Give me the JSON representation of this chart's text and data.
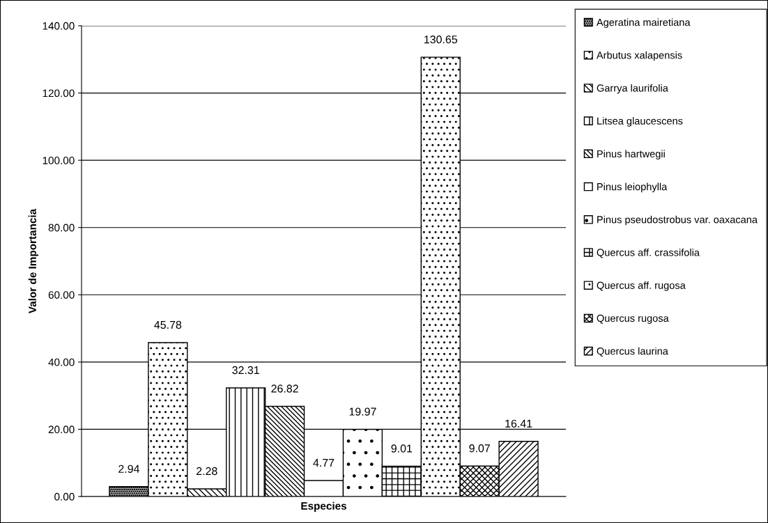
{
  "chart_data": {
    "type": "bar",
    "xlabel": "Especies",
    "ylabel": "Valor de Importancia",
    "categories": [
      null
    ],
    "series": [
      {
        "name": "Ageratina mairetiana",
        "color": "#000000",
        "values": [
          2.94
        ]
      },
      {
        "name": "Arbutus xalapensis",
        "color": "#000000",
        "values": [
          45.78
        ]
      },
      {
        "name": "Garrya laurifolia",
        "color": "#000000",
        "values": [
          2.28
        ]
      },
      {
        "name": "Litsea glaucescens",
        "color": "#000000",
        "values": [
          32.31
        ]
      },
      {
        "name": "Pinus hartwegii",
        "color": "#000000",
        "values": [
          26.82
        ]
      },
      {
        "name": "Pinus leiophylla",
        "color": "#000000",
        "values": [
          4.77
        ]
      },
      {
        "name": "Pinus pseudostrobus var. oaxacana",
        "color": "#000000",
        "values": [
          19.97
        ]
      },
      {
        "name": "Quercus aff. crassifolia",
        "color": "#000000",
        "values": [
          9.01
        ]
      },
      {
        "name": "Quercus aff. rugosa",
        "color": "#000000",
        "values": [
          130.65
        ]
      },
      {
        "name": "Quercus rugosa",
        "color": "#000000",
        "values": [
          9.07
        ]
      },
      {
        "name": "Quercus laurina",
        "color": "#000000",
        "values": [
          16.41
        ]
      }
    ],
    "ylim": [
      0,
      140
    ],
    "yticks": [
      {
        "value": 0,
        "label": "0.00"
      },
      {
        "value": 20,
        "label": "20.00"
      },
      {
        "value": 40,
        "label": "40.00"
      },
      {
        "value": 60,
        "label": "60.00"
      },
      {
        "value": 80,
        "label": "80.00"
      },
      {
        "value": 100,
        "label": "100.00"
      },
      {
        "value": 120,
        "label": "120.00"
      },
      {
        "value": 140,
        "label": "140.00"
      }
    ],
    "grid": "y",
    "legend": "right",
    "data_labels": true
  }
}
